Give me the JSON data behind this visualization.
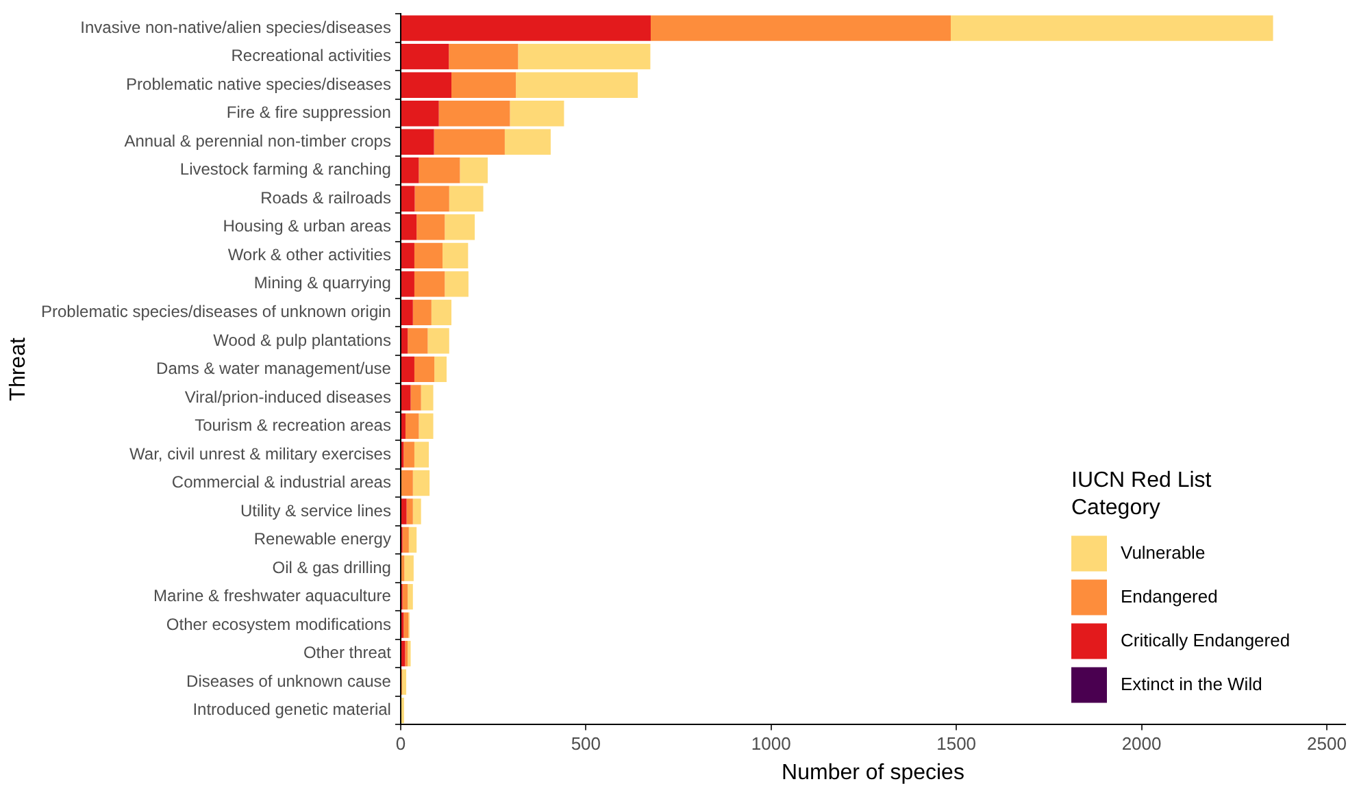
{
  "chart_data": {
    "type": "bar",
    "orientation": "horizontal",
    "stacked": true,
    "xlabel": "Number of species",
    "ylabel": "Threat",
    "legend_title": "IUCN Red List Category",
    "legend": "bottom right",
    "grid": false,
    "categories": [
      "Invasive non-native/alien species/diseases",
      "Recreational activities",
      "Problematic native species/diseases",
      "Fire & fire suppression",
      "Annual & perennial non-timber crops",
      "Livestock farming & ranching",
      "Roads & railroads",
      "Housing & urban areas",
      "Work & other activities",
      "Mining & quarrying",
      "Problematic species/diseases of unknown origin",
      "Wood & pulp plantations",
      "Dams & water management/use",
      "Viral/prion-induced diseases",
      "Tourism & recreation areas",
      "War, civil unrest & military exercises",
      "Commercial & industrial areas",
      "Utility & service lines",
      "Renewable energy",
      "Oil & gas drilling",
      "Marine & freshwater aquaculture",
      "Other ecosystem modifications",
      "Other threat",
      "Diseases of unknown cause",
      "Introduced genetic material"
    ],
    "xlim": [
      0,
      2550
    ],
    "xticks": [
      0,
      500,
      1000,
      1500,
      2000,
      2500
    ],
    "series": [
      {
        "name": "Extinct in the Wild",
        "color": "#4a0050",
        "values": [
          0,
          0,
          0,
          0,
          0,
          0,
          0,
          0,
          0,
          0,
          0,
          0,
          0,
          0,
          0,
          0,
          0,
          0,
          0,
          0,
          0,
          0,
          0,
          0,
          0
        ]
      },
      {
        "name": "Critically Endangered",
        "color": "#e31a1c",
        "values": [
          675,
          130,
          137,
          103,
          90,
          49,
          38,
          43,
          37,
          37,
          33,
          19,
          37,
          27,
          13,
          8,
          0,
          16,
          5,
          0,
          5,
          8,
          12,
          0,
          0
        ]
      },
      {
        "name": "Endangered",
        "color": "#fd8d3c",
        "values": [
          810,
          187,
          174,
          192,
          191,
          111,
          93,
          76,
          76,
          82,
          50,
          54,
          54,
          28,
          36,
          29,
          33,
          17,
          17,
          10,
          14,
          13,
          7,
          4,
          0
        ]
      },
      {
        "name": "Vulnerable",
        "color": "#fed976",
        "values": [
          870,
          357,
          329,
          146,
          124,
          75,
          92,
          81,
          69,
          64,
          54,
          58,
          33,
          33,
          39,
          39,
          45,
          22,
          21,
          25,
          14,
          3,
          8,
          11,
          9
        ]
      }
    ]
  }
}
